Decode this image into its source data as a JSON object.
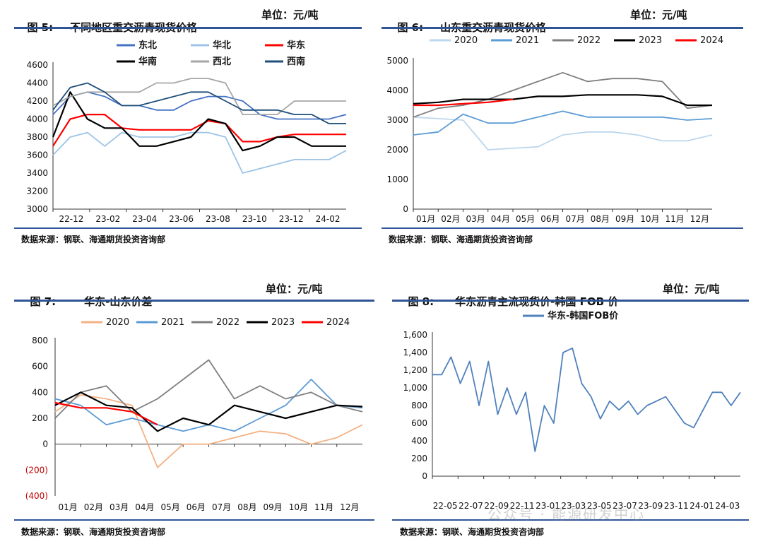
{
  "panels": [
    {
      "fig": "图 5:",
      "title": "不同地区重交沥青现货价格",
      "unit": "单位：元/吨",
      "source": "数据来源：钢联、海通期货投资咨询部"
    },
    {
      "fig": "图 6:",
      "title": "山东重交沥青现货价格",
      "unit": "单位：元/吨",
      "source": "数据来源：钢联、海通期货投资咨询部"
    },
    {
      "fig": "图 7:",
      "title": "华东-山东价差",
      "unit": "单位：元/吨",
      "source": "数据来源：钢联、海通期货投资咨询部"
    },
    {
      "fig": "图 8:",
      "title": "华东沥青主流现货价-韩国 FOB 价",
      "unit": "单位：元/吨",
      "source": "数据来源：钢联、海通期货投资咨询部"
    }
  ],
  "watermark": "公众号 · 能源研发中心",
  "chart_data": [
    {
      "type": "line",
      "ylim": [
        3000,
        4600
      ],
      "yticks": [
        "3000",
        "3200",
        "3400",
        "3600",
        "3800",
        "4000",
        "4200",
        "4400",
        "4600"
      ],
      "xticks": [
        "22-12",
        "23-02",
        "23-04",
        "23-06",
        "23-08",
        "23-10",
        "23-12",
        "24-02"
      ],
      "legend_position": "top",
      "series": [
        {
          "name": "东北",
          "color": "#4472c4",
          "values": [
            4050,
            4250,
            4300,
            4250,
            4150,
            4150,
            4100,
            4100,
            4200,
            4250,
            4250,
            4200,
            4050,
            4000,
            4000,
            4000,
            4000,
            4050
          ]
        },
        {
          "name": "华北",
          "color": "#9dc3e6",
          "values": [
            3600,
            3800,
            3850,
            3700,
            3850,
            3800,
            3800,
            3800,
            3850,
            3850,
            3800,
            3400,
            3450,
            3500,
            3550,
            3550,
            3550,
            3650
          ]
        },
        {
          "name": "华东",
          "color": "#ff0000",
          "values": [
            3700,
            4000,
            4050,
            4050,
            3900,
            3880,
            3880,
            3880,
            3880,
            3980,
            3950,
            3750,
            3750,
            3800,
            3830,
            3830,
            3830,
            3830
          ]
        },
        {
          "name": "华南",
          "color": "#000000",
          "values": [
            3800,
            4300,
            4000,
            3900,
            3900,
            3700,
            3700,
            3750,
            3800,
            4000,
            3950,
            3650,
            3700,
            3800,
            3800,
            3700,
            3700,
            3700
          ]
        },
        {
          "name": "西北",
          "color": "#a6a6a6",
          "values": [
            4150,
            4250,
            4300,
            4300,
            4300,
            4300,
            4400,
            4400,
            4450,
            4450,
            4400,
            4050,
            4050,
            4050,
            4200,
            4200,
            4200,
            4200
          ]
        },
        {
          "name": "西南",
          "color": "#1f4e79",
          "values": [
            4100,
            4350,
            4400,
            4300,
            4150,
            4150,
            4200,
            4250,
            4300,
            4300,
            4200,
            4100,
            4100,
            4100,
            4050,
            4050,
            3950,
            3950
          ]
        }
      ]
    },
    {
      "type": "line",
      "ylim": [
        0,
        5000
      ],
      "yticks": [
        "0",
        "1000",
        "2000",
        "3000",
        "4000",
        "5000"
      ],
      "xticks": [
        "01月",
        "02月",
        "03月",
        "04月",
        "05月",
        "06月",
        "07月",
        "08月",
        "09月",
        "10月",
        "11月",
        "12月"
      ],
      "legend_position": "top",
      "series": [
        {
          "name": "2020",
          "color": "#bdd7ee",
          "values": [
            3100,
            3050,
            3000,
            2000,
            2050,
            2100,
            2500,
            2600,
            2600,
            2500,
            2300,
            2300,
            2500
          ]
        },
        {
          "name": "2021",
          "color": "#5b9bd5",
          "values": [
            2500,
            2600,
            3200,
            2900,
            2900,
            3100,
            3300,
            3100,
            3100,
            3100,
            3100,
            3000,
            3050
          ]
        },
        {
          "name": "2022",
          "color": "#7f7f7f",
          "values": [
            3100,
            3400,
            3500,
            3700,
            4000,
            4300,
            4600,
            4300,
            4400,
            4400,
            4300,
            3400,
            3500
          ]
        },
        {
          "name": "2023",
          "color": "#000000",
          "values": [
            3550,
            3600,
            3700,
            3700,
            3700,
            3800,
            3800,
            3850,
            3850,
            3850,
            3800,
            3500,
            3500
          ]
        },
        {
          "name": "2024",
          "color": "#ff0000",
          "values": [
            3500,
            3500,
            3550,
            3600,
            3700
          ]
        }
      ]
    },
    {
      "type": "line",
      "ylim": [
        -400,
        800
      ],
      "yticks": [
        "(400)",
        "(200)",
        "0",
        "200",
        "400",
        "600",
        "800"
      ],
      "xticks": [
        "01月",
        "02月",
        "03月",
        "04月",
        "05月",
        "06月",
        "07月",
        "08月",
        "09月",
        "10月",
        "11月",
        "12月"
      ],
      "legend_position": "top",
      "series": [
        {
          "name": "2020",
          "color": "#f4b183",
          "values": [
            250,
            380,
            350,
            300,
            -180,
            0,
            0,
            50,
            100,
            80,
            0,
            50,
            150
          ]
        },
        {
          "name": "2021",
          "color": "#5b9bd5",
          "values": [
            350,
            300,
            150,
            200,
            150,
            100,
            150,
            100,
            200,
            300,
            500,
            300,
            280
          ]
        },
        {
          "name": "2022",
          "color": "#7f7f7f",
          "values": [
            200,
            400,
            450,
            250,
            350,
            500,
            650,
            350,
            450,
            350,
            400,
            300,
            250
          ]
        },
        {
          "name": "2023",
          "color": "#000000",
          "values": [
            300,
            400,
            300,
            280,
            100,
            200,
            150,
            300,
            250,
            200,
            250,
            300,
            290
          ]
        },
        {
          "name": "2024",
          "color": "#ff0000",
          "values": [
            320,
            280,
            280,
            250,
            150
          ]
        }
      ]
    },
    {
      "type": "line",
      "ylim": [
        0,
        1600
      ],
      "yticks": [
        "0",
        "200",
        "400",
        "600",
        "800",
        "1,000",
        "1,200",
        "1,400",
        "1,600"
      ],
      "xticks": [
        "22-05",
        "22-07",
        "22-09",
        "22-11",
        "23-01",
        "23-03",
        "23-05",
        "23-07",
        "23-09",
        "23-11",
        "24-01",
        "24-03"
      ],
      "legend_position": "top",
      "series": [
        {
          "name": "华东-韩国FOB价",
          "color": "#4f81bd",
          "values": [
            1150,
            1150,
            1350,
            1050,
            1300,
            800,
            1300,
            700,
            1000,
            700,
            950,
            280,
            800,
            600,
            1400,
            1450,
            1050,
            900,
            650,
            850,
            750,
            850,
            700,
            800,
            850,
            900,
            750,
            600,
            550,
            750,
            950,
            950,
            800,
            950
          ]
        }
      ]
    }
  ]
}
